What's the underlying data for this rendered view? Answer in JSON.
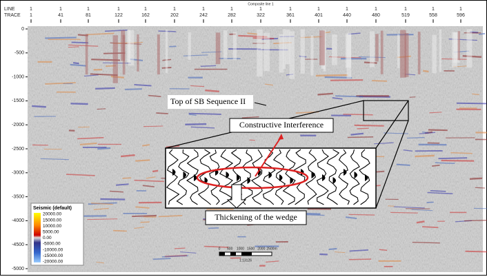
{
  "header": {
    "tab": "Composite line 1",
    "line_label": "LINE",
    "trace_label": "TRACE",
    "line_values": [
      "1",
      "1",
      "1",
      "1",
      "1",
      "1",
      "1",
      "1",
      "1",
      "1",
      "1",
      "1",
      "1",
      "1",
      "1",
      "1"
    ],
    "trace_values": [
      "1",
      "41",
      "81",
      "122",
      "162",
      "202",
      "242",
      "282",
      "322",
      "361",
      "401",
      "440",
      "480",
      "519",
      "558",
      "596"
    ]
  },
  "depth_axis": [
    "0",
    "-500",
    "-1000",
    "-1500",
    "-2000",
    "-2500",
    "-3000",
    "-3500",
    "-4000",
    "-4500",
    "-5000"
  ],
  "annotations": {
    "top": "Top of SB Sequence II",
    "interference": "Constructive Interference",
    "wedge": "Thickening of the wedge"
  },
  "legend": {
    "title": "Seismic (default)",
    "values": [
      "20000.00",
      "15000.00",
      "10000.00",
      "5000.00",
      "0.00",
      "-5000.00",
      "-10000.00",
      "-15000.00",
      "-20000.00"
    ]
  },
  "scale_bar": {
    "labels": [
      "0",
      "500",
      "1000",
      "1500",
      "2000",
      "2500m"
    ],
    "ratio": "1:13126"
  }
}
